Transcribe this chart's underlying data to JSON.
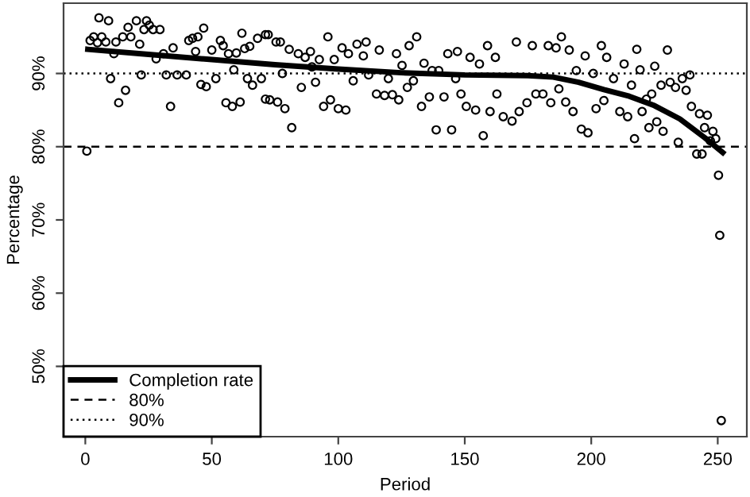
{
  "chart_data": {
    "type": "scatter",
    "xlabel": "Period",
    "ylabel": "Percentage",
    "xlim": [
      -8.6,
      261.5
    ],
    "ylim": [
      40.4,
      99.6
    ],
    "xticks": [
      0,
      50,
      100,
      150,
      200,
      250
    ],
    "yticks": [
      {
        "value": 50,
        "label": "50%"
      },
      {
        "value": 60,
        "label": "60%"
      },
      {
        "value": 70,
        "label": "70%"
      },
      {
        "value": 80,
        "label": "80%"
      },
      {
        "value": 90,
        "label": "90%"
      }
    ],
    "grid": false,
    "legend": "bottom left",
    "series": [
      {
        "marker": "circle",
        "color": "#000000",
        "x": [
          0.6,
          1.9,
          3.3,
          4.8,
          5.4,
          6.5,
          8.1,
          9.2,
          10,
          11.3,
          12.1,
          13.2,
          14.8,
          15.9,
          16.9,
          18,
          20.2,
          21.5,
          22.1,
          23.2,
          24.2,
          25.3,
          26.8,
          28,
          29.5,
          30.9,
          32,
          33.7,
          34.7,
          36.3,
          39.9,
          40.9,
          42.4,
          43.6,
          44.5,
          45.7,
          46.8,
          47.8,
          50,
          51.6,
          53.4,
          54.5,
          55.6,
          56.6,
          58.1,
          58.7,
          59.7,
          61.2,
          61.9,
          63,
          64.1,
          65,
          66.1,
          68.1,
          69.6,
          71.2,
          71.2,
          72.3,
          72.9,
          75.4,
          76,
          77.1,
          77.9,
          78.9,
          80.6,
          81.6,
          84.2,
          85.4,
          86.9,
          89,
          89.6,
          91,
          92.5,
          94.2,
          95.9,
          96.9,
          98.4,
          100,
          101.5,
          103,
          104,
          105.9,
          107.4,
          109.9,
          111,
          112,
          115.1,
          116.2,
          118.3,
          119.8,
          121.4,
          123,
          123.9,
          125.2,
          127.3,
          128,
          129.7,
          131,
          132.9,
          133.9,
          136,
          137.1,
          138.7,
          139.7,
          141.8,
          143.3,
          144.8,
          146.4,
          147.1,
          148.5,
          150.6,
          152.1,
          154.3,
          155.8,
          157.3,
          159,
          160,
          162.1,
          162.7,
          165.2,
          168.7,
          170.4,
          171.5,
          174.6,
          176.7,
          178.1,
          180.9,
          183,
          184,
          186.1,
          187.2,
          188.2,
          189.9,
          191.3,
          192.8,
          194.1,
          196.1,
          197.6,
          198.7,
          200.8,
          201.9,
          204,
          205,
          206.1,
          208.8,
          211.3,
          213,
          214.4,
          215.9,
          217.1,
          218,
          219.3,
          220.1,
          221.8,
          222.8,
          223.9,
          225.1,
          225.9,
          227.6,
          228.4,
          230.1,
          231.2,
          233.3,
          234.4,
          236,
          237.5,
          239,
          239.6,
          241.7,
          242.8,
          243.8,
          244.8,
          245.9,
          247.1,
          248.1,
          249.2,
          250.3,
          250.8,
          251.4
        ],
        "values": [
          79.4,
          94.5,
          95,
          94.2,
          97.6,
          95,
          94.3,
          97.2,
          89.3,
          92.7,
          94.3,
          86,
          95,
          87.7,
          96.3,
          95,
          97.2,
          94,
          89.8,
          96,
          97.2,
          96.6,
          96,
          92,
          96,
          92.7,
          89.8,
          85.5,
          93.5,
          89.8,
          89.8,
          94.5,
          94.8,
          93,
          95,
          88.5,
          96.2,
          88.2,
          93.2,
          89.3,
          94.5,
          93.8,
          86,
          92.7,
          85.5,
          90.5,
          92.8,
          86.1,
          95.5,
          93.4,
          89.3,
          93.7,
          88.4,
          94.8,
          89.3,
          95.3,
          86.5,
          95.3,
          86.4,
          94.3,
          86.1,
          94.3,
          90,
          85.2,
          93.3,
          82.6,
          92.7,
          88.1,
          92.2,
          93,
          90.9,
          88.8,
          91.9,
          85.5,
          95,
          86.4,
          91.9,
          85.2,
          93.5,
          85,
          92.7,
          89,
          94,
          92.4,
          94.3,
          89.8,
          87.2,
          93.2,
          87,
          89.3,
          87.1,
          92.7,
          86.4,
          91.1,
          88.1,
          93.8,
          89,
          95,
          85.5,
          91.4,
          86.8,
          90.4,
          82.3,
          90.4,
          86.8,
          92.7,
          82.3,
          89.3,
          93,
          87.2,
          85.5,
          92.2,
          85,
          91.3,
          81.5,
          93.8,
          84.8,
          92.2,
          87.2,
          84.1,
          83.5,
          94.3,
          84.8,
          86,
          93.8,
          87.2,
          87.2,
          93.8,
          86,
          93.5,
          87.9,
          95,
          86.1,
          93.2,
          84.8,
          90.4,
          82.4,
          92.4,
          81.9,
          90,
          85.2,
          93.8,
          86.3,
          92.2,
          89.3,
          84.8,
          91.3,
          84.1,
          88.4,
          81.1,
          93.3,
          90.5,
          84.8,
          86.5,
          82.6,
          87.2,
          91,
          83.4,
          88.4,
          82.1,
          93.2,
          88.8,
          88.1,
          80.6,
          89.3,
          87.7,
          89.8,
          85.5,
          79,
          84.5,
          79,
          82.6,
          84.3,
          80.8,
          82.1,
          81.1,
          76.1,
          67.9,
          42.6
        ]
      },
      {
        "type": "line",
        "name": "Completion rate",
        "color": "#000000",
        "marker": "none",
        "line_style": "solid",
        "x": [
          1,
          25,
          50,
          75,
          100,
          125,
          150,
          175,
          185,
          195,
          205,
          215,
          225,
          235,
          245,
          252
        ],
        "values": [
          93.3,
          92.6,
          91.9,
          91.2,
          90.6,
          90.1,
          89.8,
          89.7,
          89.5,
          88.8,
          87.8,
          86.9,
          85.6,
          83.8,
          81.2,
          79.2
        ]
      }
    ],
    "ref_lines": [
      {
        "axis": "y",
        "value": 80,
        "label": "80%",
        "line_style": "dashed",
        "color": "#000000"
      },
      {
        "axis": "y",
        "value": 90,
        "label": "90%",
        "line_style": "dotted",
        "color": "#000000"
      }
    ]
  }
}
